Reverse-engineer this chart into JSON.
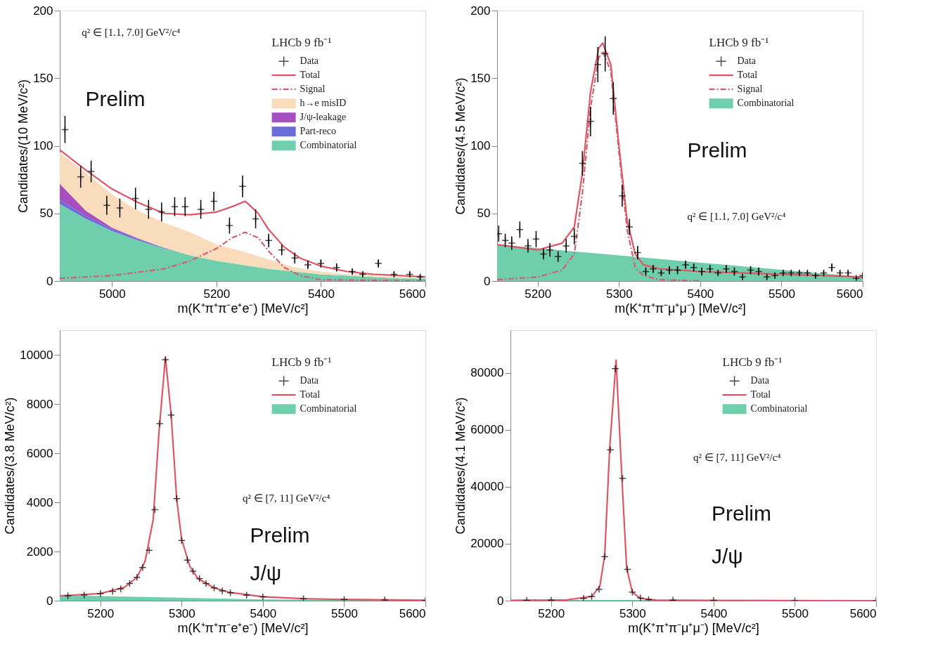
{
  "chart_data": [
    {
      "type": "line",
      "xlabel": "m(K⁺π⁺π⁻e⁺e⁻) [MeV/c²]",
      "ylabel": "Candidates/(10 MeV/c²)",
      "xlim": [
        4900,
        5600
      ],
      "ylim": [
        0,
        200
      ],
      "xticks": [
        5000,
        5200,
        5400,
        5600
      ],
      "yticks": [
        0,
        50,
        100,
        150,
        200
      ],
      "stacked": true,
      "legend": "top right",
      "legend_title": "LHCb 9 fb⁻¹",
      "annotations": [
        "q² ∈ [1.1, 7.0] GeV²/c⁴",
        "Prelim"
      ],
      "series": [
        {
          "name": "Data",
          "type": "scatter",
          "marker": "cross",
          "color": "#000000",
          "x": [
            4910,
            4940,
            4960,
            4990,
            5015,
            5045,
            5070,
            5095,
            5120,
            5140,
            5170,
            5195,
            5225,
            5250,
            5275,
            5300,
            5325,
            5350,
            5375,
            5400,
            5430,
            5460,
            5480,
            5510,
            5540,
            5570,
            5590
          ],
          "values": [
            112,
            77,
            81,
            56,
            54,
            61,
            53,
            51,
            55,
            55,
            53,
            59,
            41,
            70,
            46,
            30,
            23,
            17,
            12,
            13,
            10,
            7,
            5,
            13,
            5,
            5,
            3
          ],
          "errors": [
            10,
            8,
            8,
            7,
            7,
            8,
            7,
            7,
            7,
            7,
            7,
            7,
            6,
            8,
            7,
            5,
            4,
            4,
            3,
            3,
            3,
            2,
            2,
            3,
            2,
            2,
            2
          ]
        },
        {
          "name": "Total",
          "color": "#e05565",
          "x": [
            4900,
            4950,
            5000,
            5050,
            5100,
            5150,
            5200,
            5230,
            5255,
            5280,
            5300,
            5330,
            5360,
            5400,
            5450,
            5500,
            5600
          ],
          "values": [
            97,
            82,
            68,
            58,
            50,
            49,
            51,
            55,
            59,
            50,
            38,
            25,
            17,
            11,
            7,
            5,
            3
          ]
        },
        {
          "name": "Signal",
          "type": "line",
          "line_style": "dashed",
          "color": "#d06070",
          "x": [
            4900,
            5000,
            5100,
            5150,
            5200,
            5230,
            5255,
            5280,
            5300,
            5330,
            5360,
            5400,
            5500,
            5600
          ],
          "values": [
            2,
            4,
            9,
            15,
            24,
            32,
            36,
            32,
            22,
            10,
            4,
            1,
            0.5,
            0
          ]
        },
        {
          "name": "Combinatorial",
          "type": "area",
          "color": "#6fcfad",
          "x": [
            4900,
            4950,
            5000,
            5050,
            5100,
            5150,
            5200,
            5250,
            5300,
            5350,
            5400,
            5450,
            5500,
            5550,
            5600
          ],
          "values": [
            57,
            46,
            37,
            30,
            24,
            19,
            15,
            12,
            9,
            7,
            5,
            4,
            3,
            2,
            2
          ]
        },
        {
          "name": "Part-reco",
          "type": "area",
          "color": "#6b6bdc",
          "x": [
            4900,
            4950,
            5000,
            5050,
            5100,
            5150,
            5200,
            5250,
            5300,
            5350,
            5400,
            5450,
            5500,
            5550,
            5600
          ],
          "values": [
            3,
            2,
            1.5,
            1,
            0.5,
            0,
            0,
            0,
            0,
            0,
            0,
            0,
            0,
            0,
            0
          ]
        },
        {
          "name": "J/ψ-leakage",
          "type": "area",
          "color": "#a84fbf",
          "x": [
            4900,
            4950,
            5000,
            5050,
            5100,
            5150,
            5200,
            5250,
            5300,
            5350,
            5400,
            5450,
            5500,
            5550,
            5600
          ],
          "values": [
            12,
            4,
            1,
            0.5,
            0,
            0,
            0,
            0,
            0,
            0,
            0,
            0,
            0,
            0,
            0
          ]
        },
        {
          "name": "h→e misID",
          "type": "area",
          "color": "#f9dcbc",
          "x": [
            4900,
            4950,
            5000,
            5050,
            5100,
            5150,
            5200,
            5250,
            5300,
            5350,
            5400,
            5450,
            5500,
            5550,
            5600
          ],
          "values": [
            23,
            28,
            24.5,
            20.5,
            18.5,
            17,
            12,
            10,
            7,
            3,
            2,
            1,
            1,
            1,
            0
          ]
        }
      ]
    },
    {
      "type": "line",
      "xlabel": "m(K⁺π⁺π⁻μ⁺μ⁻) [MeV/c²]",
      "ylabel": "Candidates/(4.5 MeV/c²)",
      "xlim": [
        5150,
        5600
      ],
      "ylim": [
        0,
        200
      ],
      "xticks": [
        5200,
        5300,
        5400,
        5500,
        5600
      ],
      "yticks": [
        0,
        50,
        100,
        150,
        200
      ],
      "stacked": true,
      "legend": "top right",
      "legend_title": "LHCb 9 fb⁻¹",
      "annotations": [
        "Prelim",
        "q² ∈ [1.1, 7.0] GeV²/c⁴"
      ],
      "series": [
        {
          "name": "Data",
          "type": "scatter",
          "marker": "cross",
          "color": "#000000",
          "x": [
            5152,
            5160,
            5168,
            5178,
            5188,
            5198,
            5207,
            5215,
            5225,
            5235,
            5245,
            5255,
            5265,
            5274,
            5283,
            5293,
            5304,
            5313,
            5323,
            5333,
            5342,
            5352,
            5362,
            5372,
            5382,
            5392,
            5402,
            5412,
            5422,
            5432,
            5442,
            5452,
            5462,
            5472,
            5482,
            5492,
            5502,
            5512,
            5522,
            5532,
            5542,
            5552,
            5562,
            5572,
            5582,
            5592,
            5600
          ],
          "values": [
            35,
            30,
            28,
            38,
            26,
            31,
            20,
            23,
            18,
            26,
            33,
            87,
            118,
            160,
            168,
            135,
            63,
            40,
            21,
            7,
            9,
            6,
            8,
            8,
            12,
            10,
            7,
            9,
            6,
            9,
            7,
            3,
            8,
            7,
            3,
            4,
            6,
            6,
            6,
            6,
            4,
            6,
            10,
            6,
            6,
            2,
            4
          ],
          "errors": [
            6,
            5,
            5,
            6,
            5,
            6,
            4,
            5,
            4,
            5,
            6,
            9,
            11,
            13,
            13,
            12,
            8,
            6,
            5,
            3,
            3,
            2,
            3,
            3,
            3,
            3,
            3,
            3,
            2,
            3,
            3,
            2,
            3,
            3,
            2,
            2,
            2,
            2,
            2,
            2,
            2,
            2,
            3,
            2,
            2,
            1,
            2
          ]
        },
        {
          "name": "Total",
          "color": "#e05565",
          "x": [
            5150,
            5200,
            5230,
            5245,
            5255,
            5265,
            5275,
            5280,
            5290,
            5300,
            5310,
            5320,
            5330,
            5350,
            5400,
            5500,
            5600
          ],
          "values": [
            27,
            23,
            28,
            40,
            80,
            140,
            172,
            176,
            160,
            100,
            45,
            20,
            12,
            9,
            7,
            5,
            3
          ]
        },
        {
          "name": "Signal",
          "type": "line",
          "line_style": "dashed",
          "color": "#d06070",
          "x": [
            5150,
            5200,
            5230,
            5245,
            5255,
            5265,
            5275,
            5280,
            5290,
            5300,
            5310,
            5320,
            5330,
            5350,
            5400
          ],
          "values": [
            1,
            3,
            8,
            20,
            65,
            128,
            165,
            170,
            155,
            95,
            38,
            10,
            4,
            1,
            0
          ]
        },
        {
          "name": "Combinatorial",
          "type": "area",
          "color": "#6fcfad",
          "x": [
            5150,
            5600
          ],
          "values": [
            27,
            3
          ]
        }
      ]
    },
    {
      "type": "line",
      "xlabel": "m(K⁺π⁺π⁻e⁺e⁻) [MeV/c²]",
      "ylabel": "Candidates/(3.8 MeV/c²)",
      "xlim": [
        5150,
        5600
      ],
      "ylim": [
        0,
        11000
      ],
      "xticks": [
        5200,
        5300,
        5400,
        5500,
        5600
      ],
      "yticks": [
        0,
        2000,
        4000,
        6000,
        8000,
        10000
      ],
      "stacked": true,
      "legend": "top right",
      "legend_title": "LHCb 9 fb⁻¹",
      "annotations": [
        "q² ∈ [7, 11] GeV²/c⁴",
        "Prelim",
        "J/ψ"
      ],
      "series": [
        {
          "name": "Data",
          "type": "scatter",
          "marker": "cross",
          "color": "#000000",
          "x": [
            5160,
            5180,
            5200,
            5215,
            5225,
            5236,
            5245,
            5252,
            5260,
            5267,
            5273,
            5280,
            5287,
            5294,
            5300,
            5307,
            5314,
            5322,
            5330,
            5340,
            5350,
            5360,
            5380,
            5400,
            5450,
            5500,
            5550,
            5600
          ],
          "values": [
            200,
            230,
            290,
            380,
            480,
            700,
            950,
            1350,
            2050,
            3700,
            7200,
            9800,
            7550,
            4150,
            2450,
            1650,
            1200,
            900,
            700,
            520,
            400,
            320,
            220,
            160,
            80,
            50,
            30,
            10
          ]
        },
        {
          "name": "Total",
          "color": "#e05565",
          "x": [
            5150,
            5200,
            5230,
            5245,
            5255,
            5265,
            5272,
            5280,
            5287,
            5294,
            5300,
            5310,
            5320,
            5340,
            5360,
            5400,
            5450,
            5500,
            5600
          ],
          "values": [
            200,
            290,
            550,
            950,
            1600,
            3300,
            6800,
            9900,
            7600,
            4100,
            2500,
            1400,
            900,
            520,
            330,
            160,
            80,
            50,
            20
          ]
        },
        {
          "name": "Combinatorial",
          "type": "area",
          "color": "#6fcfad",
          "x": [
            5150,
            5400,
            5600
          ],
          "values": [
            220,
            50,
            10
          ]
        }
      ]
    },
    {
      "type": "line",
      "xlabel": "m(K⁺π⁺π⁻μ⁺μ⁻) [MeV/c²]",
      "ylabel": "Candidates/(4.1 MeV/c²)",
      "xlim": [
        5150,
        5600
      ],
      "ylim": [
        0,
        95000
      ],
      "xticks": [
        5200,
        5300,
        5400,
        5500,
        5600
      ],
      "yticks": [
        0,
        20000,
        40000,
        60000,
        80000
      ],
      "stacked": true,
      "legend": "top right",
      "legend_title": "LHCb 9 fb⁻¹",
      "annotations": [
        "q² ∈ [7, 11] GeV²/c⁴",
        "Prelim",
        "J/ψ"
      ],
      "series": [
        {
          "name": "Data",
          "type": "scatter",
          "marker": "cross",
          "color": "#000000",
          "x": [
            5170,
            5200,
            5240,
            5250,
            5259,
            5266,
            5273,
            5279,
            5288,
            5294,
            5300,
            5310,
            5320,
            5350,
            5400,
            5500,
            5600
          ],
          "values": [
            100,
            200,
            800,
            1500,
            4000,
            15500,
            53000,
            81500,
            43000,
            11000,
            3000,
            900,
            400,
            200,
            100,
            0,
            0
          ]
        },
        {
          "name": "Total",
          "color": "#e05565",
          "x": [
            5150,
            5220,
            5250,
            5260,
            5266,
            5272,
            5280,
            5287,
            5293,
            5300,
            5310,
            5330,
            5400,
            5600
          ],
          "values": [
            100,
            300,
            1500,
            5000,
            16000,
            53000,
            84500,
            44000,
            11500,
            3000,
            800,
            200,
            100,
            0
          ]
        },
        {
          "name": "Combinatorial",
          "type": "area",
          "color": "#6fcfad",
          "x": [
            5150,
            5600
          ],
          "values": [
            300,
            100
          ]
        }
      ]
    }
  ]
}
